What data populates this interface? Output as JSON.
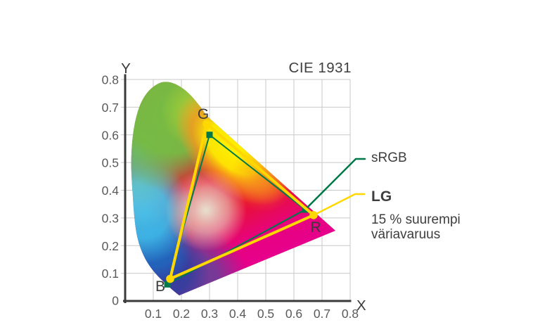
{
  "title": "CIE 1931",
  "axes": {
    "x_label": "X",
    "y_label": "Y",
    "origin_label": "0",
    "x_ticks": [
      "0.1",
      "0.2",
      "0.3",
      "0.4",
      "0.5",
      "0.6",
      "0.7",
      "0.8"
    ],
    "y_ticks": [
      "0.1",
      "0.2",
      "0.3",
      "0.4",
      "0.5",
      "0.6",
      "0.7",
      "0.8"
    ]
  },
  "vertex_labels": {
    "green": "G",
    "blue": "B",
    "red": "R"
  },
  "legend": {
    "srgb_label": "sRGB",
    "lg_label": "LG",
    "lg_note_line1": "15 % suurempi",
    "lg_note_line2": "väriavaruus"
  },
  "colors": {
    "srgb_line": "#00794A",
    "lg_line": "#FFD800",
    "lg_text": "#A50034",
    "text_dark": "#3E3E3E",
    "tick_text": "#5A5A5A",
    "grid": "#C9C9C9",
    "axis": "#3A3A3A"
  },
  "chart_data": {
    "type": "scatter",
    "title": "CIE 1931",
    "xlabel": "X",
    "ylabel": "Y",
    "xlim": [
      0,
      0.8
    ],
    "ylim": [
      0,
      0.8
    ],
    "grid": true,
    "legend_position": "right",
    "series": [
      {
        "name": "sRGB",
        "color": "#00794A",
        "marker": "square",
        "points": {
          "R": [
            0.64,
            0.33
          ],
          "G": [
            0.3,
            0.6
          ],
          "B": [
            0.15,
            0.06
          ]
        }
      },
      {
        "name": "LG",
        "color": "#FFD800",
        "marker": "circle",
        "points": {
          "R": [
            0.67,
            0.31
          ],
          "G": [
            0.29,
            0.64
          ],
          "B": [
            0.16,
            0.08
          ]
        }
      }
    ],
    "annotation": "15 % suurempi väriavaruus"
  }
}
